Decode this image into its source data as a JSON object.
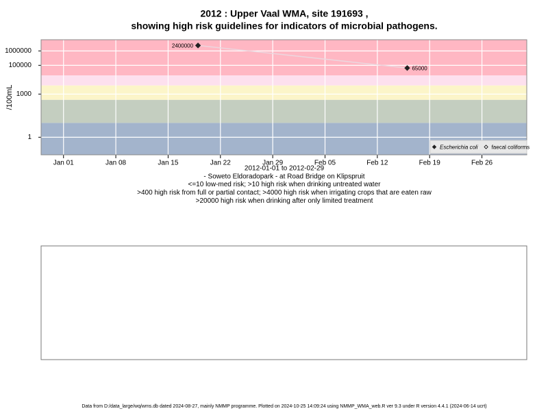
{
  "chart_data": {
    "type": "line",
    "title": "2012 : Upper Vaal WMA, site 191693 ,",
    "subtitle": "showing high risk guidelines for indicators of microbial pathogens.",
    "ylabel": "/100mL",
    "notes": [
      "2012-01-01 to 2012-02-29",
      "- Soweto Eldoradopark - at Road Bridge on Klipspruit",
      "<=10 low-med risk; >10 high risk when drinking untreated water",
      ">400 high risk from full or partial contact; >4000 high risk when irrigating crops that are eaten raw",
      ">20000 high risk when drinking after only limited treatment"
    ],
    "footer": "Data from D:/data_large/wq/wms.db dated 2024-08-27, mainly NMMP programme. Plotted on 2024-10-25 14:09:24 using NMMP_WMA_web.R ver 9.3 under R version 4.4.1 (2024-06-14 ucrt)",
    "x": [
      "2012-01-19",
      "2012-02-16"
    ],
    "series": [
      {
        "name": "Escherichia coli",
        "color": "#222222",
        "line_color": "#ecd6de",
        "marker": "filled",
        "values": [
          2400000,
          65000
        ]
      },
      {
        "name": "faecal coliforms",
        "color": "#222222",
        "marker": "open",
        "values": [
          null,
          null
        ]
      }
    ],
    "log_y": true,
    "ylim": [
      0.06,
      6000000
    ],
    "yticks": [
      1,
      1000,
      100000,
      1000000
    ],
    "xlim": [
      "2011-12-29",
      "2012-03-03"
    ],
    "xticks": [
      {
        "value": "2012-01-01",
        "label": "Jan 01"
      },
      {
        "value": "2012-01-08",
        "label": "Jan 08"
      },
      {
        "value": "2012-01-15",
        "label": "Jan 15"
      },
      {
        "value": "2012-01-22",
        "label": "Jan 22"
      },
      {
        "value": "2012-01-29",
        "label": "Jan 29"
      },
      {
        "value": "2012-02-05",
        "label": "Feb 05"
      },
      {
        "value": "2012-02-12",
        "label": "Feb 12"
      },
      {
        "value": "2012-02-19",
        "label": "Feb 19"
      },
      {
        "value": "2012-02-26",
        "label": "Feb 26"
      }
    ],
    "bands": [
      {
        "max": 10,
        "color": "#a3b4cc"
      },
      {
        "max": 400,
        "color": "#c4cec0"
      },
      {
        "max": 4000,
        "color": "#fcf5c9"
      },
      {
        "max": 20000,
        "color": "#fde0ee"
      },
      {
        "color": "#ffb7c3"
      }
    ],
    "grid": true,
    "legend": "bottom-right"
  }
}
